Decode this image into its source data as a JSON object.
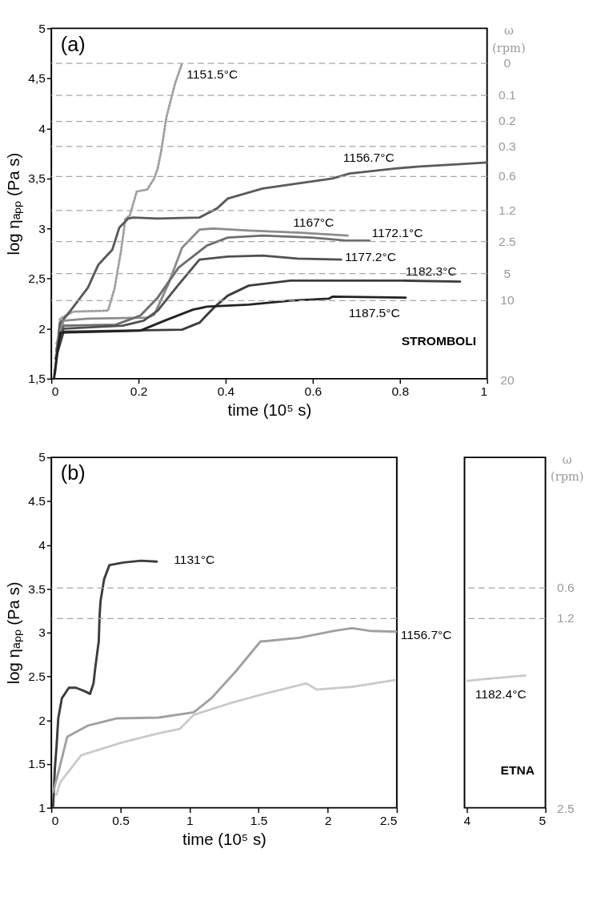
{
  "chart_data": [
    {
      "type": "line",
      "xlabel": "time (10⁵ s)",
      "ylabel": "log ηₐₚₚ (Pa s)",
      "y2label": "ω (rpm)",
      "xlim": [
        0,
        1
      ],
      "xticks": [
        0,
        0.2,
        0.4,
        0.6,
        0.8,
        1
      ],
      "ylim": [
        1.5,
        5
      ],
      "yticks": [
        {
          "value": 1.5,
          "label": "1,5"
        },
        2,
        {
          "value": 2.5,
          "label": "2,5"
        },
        3,
        {
          "value": 3.5,
          "label": "3,5"
        },
        4,
        {
          "value": 4.5,
          "label": "4,5"
        },
        5
      ],
      "grid": false,
      "ref_lines": [
        {
          "axis": "y",
          "value": 4.65,
          "color": "#a6a6a6",
          "line_style": "dashed"
        },
        {
          "axis": "y",
          "value": 4.33,
          "color": "#a6a6a6",
          "line_style": "dashed"
        },
        {
          "axis": "y",
          "value": 4.07,
          "color": "#a6a6a6",
          "line_style": "dashed"
        },
        {
          "axis": "y",
          "value": 3.82,
          "color": "#a6a6a6",
          "line_style": "dashed"
        },
        {
          "axis": "y",
          "value": 3.52,
          "color": "#a6a6a6",
          "line_style": "dashed"
        },
        {
          "axis": "y",
          "value": 3.18,
          "color": "#a6a6a6",
          "line_style": "dashed"
        },
        {
          "axis": "y",
          "value": 2.87,
          "color": "#a6a6a6",
          "line_style": "dashed"
        },
        {
          "axis": "y",
          "value": 2.55,
          "color": "#a6a6a6",
          "line_style": "dashed"
        },
        {
          "axis": "y",
          "value": 2.28,
          "color": "#a6a6a6",
          "line_style": "dashed"
        }
      ],
      "series": [
        {
          "name": "1151.5°C",
          "color": "#a0a0a0",
          "line_style": "dotted",
          "x": [
            0.01,
            0.02,
            0.05,
            0.13,
            0.145,
            0.16,
            0.17,
            0.18,
            0.196,
            0.22,
            0.236,
            0.244,
            0.252,
            0.264,
            0.284,
            0.3
          ],
          "values": [
            1.7,
            2.1,
            2.17,
            2.18,
            2.4,
            2.78,
            3.1,
            3.13,
            3.37,
            3.39,
            3.5,
            3.6,
            3.77,
            4.11,
            4.45,
            4.65
          ]
        },
        {
          "name": "1156.7°C",
          "color": "#5a5a5a",
          "x": [
            0.008,
            0.02,
            0.044,
            0.084,
            0.108,
            0.14,
            0.156,
            0.176,
            0.188,
            0.244,
            0.34,
            0.38,
            0.405,
            0.485,
            0.645,
            0.685,
            0.79,
            0.845,
            0.925,
            1.0
          ],
          "values": [
            1.55,
            2.05,
            2.18,
            2.41,
            2.64,
            2.79,
            3.01,
            3.1,
            3.11,
            3.1,
            3.11,
            3.2,
            3.3,
            3.4,
            3.5,
            3.55,
            3.6,
            3.62,
            3.64,
            3.66
          ]
        },
        {
          "name": "1167°C",
          "color": "#8c8c8c",
          "x": [
            0.012,
            0.028,
            0.084,
            0.22,
            0.236,
            0.268,
            0.3,
            0.34,
            0.373,
            0.453,
            0.565,
            0.68
          ],
          "values": [
            1.85,
            2.08,
            2.1,
            2.11,
            2.14,
            2.44,
            2.81,
            2.99,
            3.0,
            2.98,
            2.96,
            2.93
          ]
        },
        {
          "name": "1172.1°C",
          "color": "#6e6e6e",
          "x": [
            0.012,
            0.028,
            0.148,
            0.204,
            0.244,
            0.292,
            0.357,
            0.405,
            0.485,
            0.597,
            0.677,
            0.73
          ],
          "values": [
            1.8,
            2.03,
            2.04,
            2.13,
            2.31,
            2.61,
            2.83,
            2.91,
            2.93,
            2.91,
            2.88,
            2.88
          ]
        },
        {
          "name": "1177.2°C",
          "color": "#505050",
          "x": [
            0.012,
            0.028,
            0.164,
            0.212,
            0.244,
            0.292,
            0.34,
            0.405,
            0.485,
            0.565,
            0.665
          ],
          "values": [
            1.78,
            2.0,
            2.03,
            2.08,
            2.18,
            2.44,
            2.69,
            2.72,
            2.73,
            2.7,
            2.69
          ]
        },
        {
          "name": "1182.3°C",
          "color": "#3c3c3c",
          "x": [
            0.01,
            0.028,
            0.3,
            0.34,
            0.373,
            0.405,
            0.453,
            0.549,
            0.645,
            0.805,
            0.938
          ],
          "values": [
            1.7,
            1.97,
            1.99,
            2.06,
            2.21,
            2.33,
            2.43,
            2.48,
            2.48,
            2.48,
            2.47
          ]
        },
        {
          "name": "1187.5°C",
          "color": "#232323",
          "x": [
            0.006,
            0.02,
            0.204,
            0.26,
            0.325,
            0.357,
            0.453,
            0.549,
            0.637,
            0.645,
            0.813
          ],
          "values": [
            1.5,
            1.96,
            1.98,
            2.08,
            2.19,
            2.22,
            2.24,
            2.28,
            2.3,
            2.32,
            2.31
          ]
        }
      ],
      "annotations": [
        "(a)",
        "STROMBOLI",
        "0",
        "0.1",
        "0.2",
        "0.3",
        "0.6",
        "1.2",
        "2.5",
        "5",
        "10",
        "20"
      ]
    },
    {
      "type": "line",
      "xlabel": "time (10⁵ s)",
      "ylabel": "log ηₐₚₚ (Pa s)",
      "xlim": [
        0,
        2.5
      ],
      "xticks": [
        0,
        0.5,
        1,
        1.5,
        2,
        2.5
      ],
      "ylim": [
        1,
        5
      ],
      "yticks": [
        1,
        1.5,
        2,
        2.5,
        3,
        3.5,
        4,
        4.5,
        5
      ],
      "grid": false,
      "ref_lines": [
        {
          "axis": "y",
          "value": 3.51,
          "color": "#a6a6a6",
          "line_style": "dashed"
        },
        {
          "axis": "y",
          "value": 3.16,
          "color": "#a6a6a6",
          "line_style": "dashed"
        }
      ],
      "series": [
        {
          "name": "1131°C",
          "color": "#3c3c3c",
          "x": [
            0.013,
            0.025,
            0.038,
            0.05,
            0.076,
            0.127,
            0.178,
            0.242,
            0.28,
            0.305,
            0.318,
            0.343,
            0.349,
            0.356,
            0.382,
            0.42,
            0.522,
            0.649,
            0.763
          ],
          "values": [
            1.02,
            1.44,
            1.71,
            2.02,
            2.25,
            2.37,
            2.37,
            2.33,
            2.3,
            2.42,
            2.6,
            2.9,
            3.19,
            3.36,
            3.61,
            3.77,
            3.8,
            3.82,
            3.81
          ]
        },
        {
          "name": "1156.7°C",
          "color": "#a0a0a0",
          "x": [
            0.013,
            0.05,
            0.115,
            0.267,
            0.47,
            0.776,
            1.03,
            1.158,
            1.336,
            1.514,
            1.539,
            1.794,
            2.049,
            2.176,
            2.303,
            2.494
          ],
          "values": [
            1.18,
            1.4,
            1.81,
            1.94,
            2.02,
            2.03,
            2.09,
            2.25,
            2.56,
            2.9,
            2.9,
            2.94,
            3.02,
            3.05,
            3.02,
            3.01
          ]
        },
        {
          "color": "#c8c8c8",
          "line_style": "dotted",
          "x": [
            0.038,
            0.064,
            0.216,
            0.522,
            0.776,
            0.929,
            1.03,
            1.285,
            1.539,
            1.845,
            1.921,
            2.176,
            2.494
          ],
          "values": [
            1.15,
            1.29,
            1.6,
            1.75,
            1.85,
            1.9,
            2.06,
            2.19,
            2.3,
            2.42,
            2.35,
            2.38,
            2.46
          ]
        }
      ],
      "annotations": [
        "(b)"
      ]
    },
    {
      "type": "line",
      "y2label": "ω (rpm)",
      "tick_labels": "x",
      "xlim": [
        3.97,
        5
      ],
      "xticks": [
        4,
        5
      ],
      "ylim": [
        1,
        5
      ],
      "grid": false,
      "ref_lines": [
        {
          "axis": "y",
          "value": 3.51,
          "color": "#a6a6a6",
          "line_style": "dashed"
        },
        {
          "axis": "y",
          "value": 3.16,
          "color": "#a6a6a6",
          "line_style": "dashed"
        }
      ],
      "series": [
        {
          "name": "1182.4°C",
          "color": "#c8c8c8",
          "line_style": "dotted",
          "x": [
            4.01,
            4.36,
            4.74
          ],
          "values": [
            2.45,
            2.48,
            2.51
          ]
        }
      ],
      "annotations": [
        "ETNA",
        "0.6",
        "1.2",
        "2.5"
      ]
    }
  ]
}
